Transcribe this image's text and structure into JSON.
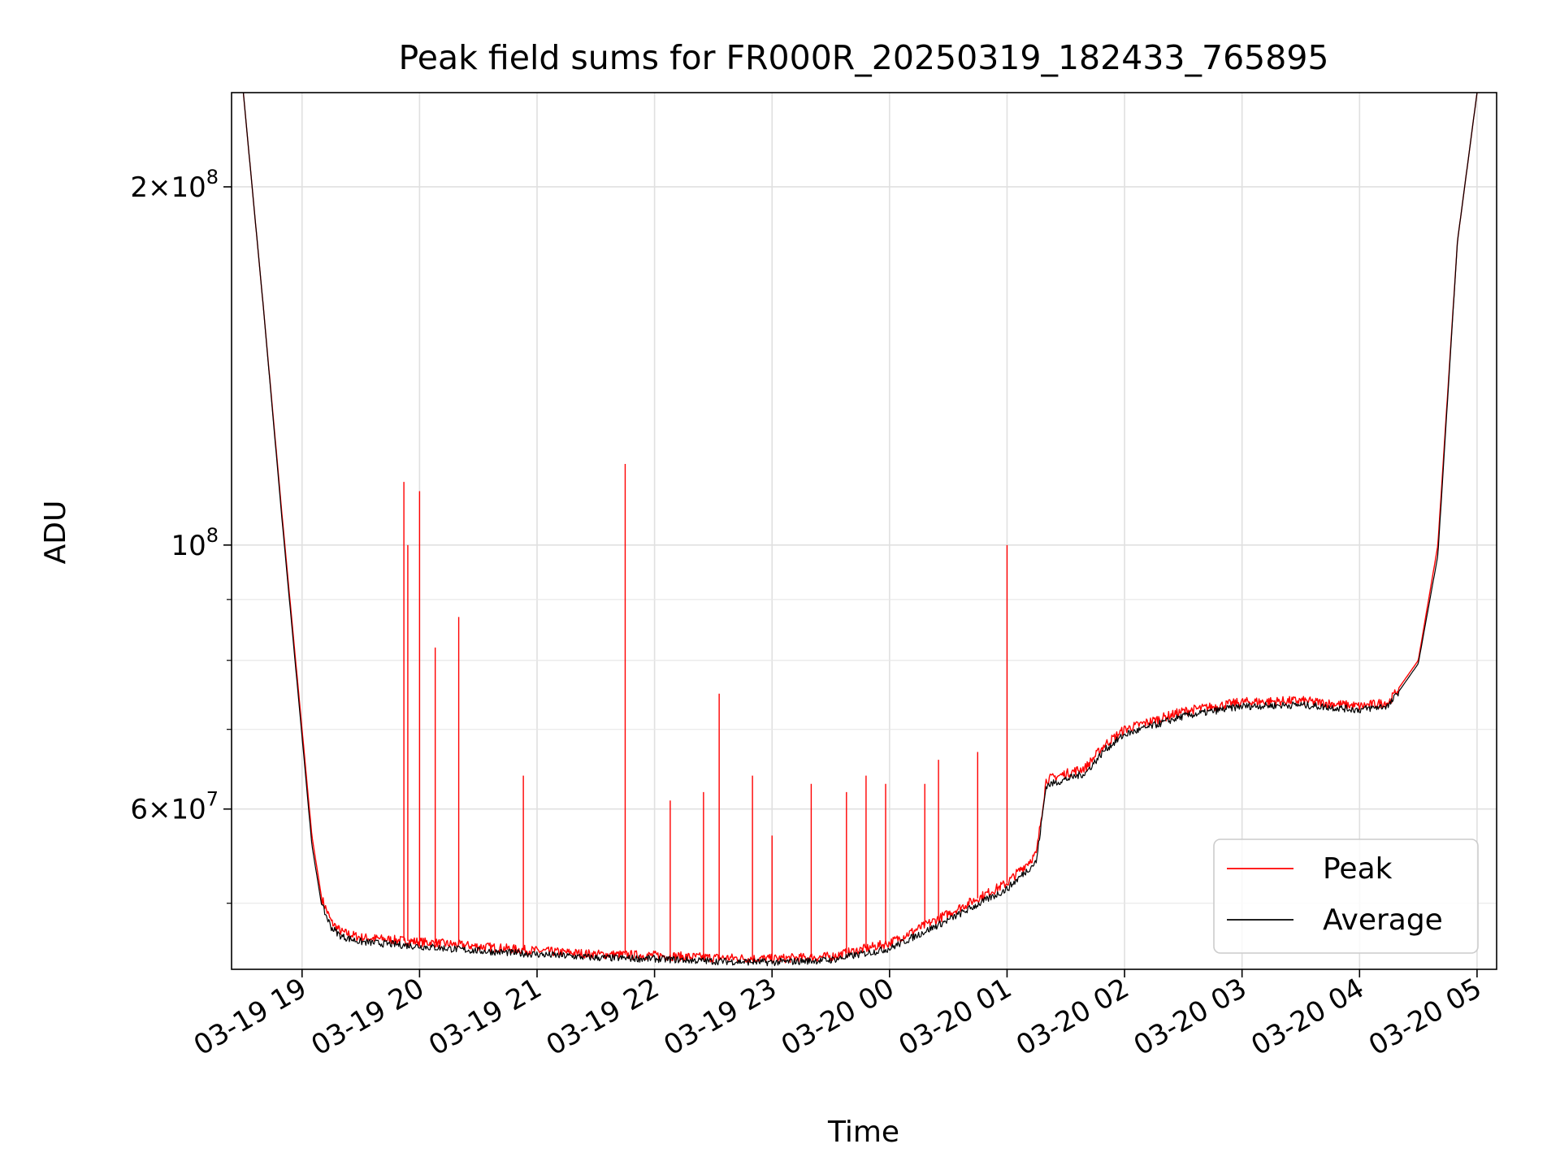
{
  "chart_data": {
    "type": "line",
    "title": "Peak field sums for FR000R_20250319_182433_765895",
    "xlabel": "Time",
    "ylabel": "ADU",
    "yscale": "log",
    "xlim": [
      "2025-03-19 18:24",
      "2025-03-20 05:10"
    ],
    "ylim": [
      44000000,
      240000000
    ],
    "x_ticks": [
      "03-19 19",
      "03-19 20",
      "03-19 21",
      "03-19 22",
      "03-19 23",
      "03-20 00",
      "03-20 01",
      "03-20 02",
      "03-20 03",
      "03-20 04",
      "03-20 05"
    ],
    "y_ticks": [
      {
        "value": 60000000,
        "base": "6",
        "exp": "7"
      },
      {
        "value": 100000000,
        "base": "",
        "exp": "8"
      },
      {
        "value": 200000000,
        "base": "2",
        "exp": "8"
      }
    ],
    "y_minor_ticks": [
      50000000,
      70000000,
      80000000,
      90000000
    ],
    "grid": true,
    "legend_position": "lower-right",
    "colors": {
      "peak": "#ff0000",
      "average": "#000000"
    },
    "series": [
      {
        "name": "Peak",
        "color": "#ff0000",
        "x": [
          "2025-03-19 18:30",
          "2025-03-19 18:40",
          "2025-03-19 18:50",
          "2025-03-19 19:00",
          "2025-03-19 19:05",
          "2025-03-19 19:10",
          "2025-03-19 19:15",
          "2025-03-19 19:20",
          "2025-03-19 19:30",
          "2025-03-19 19:45",
          "2025-03-19 20:00",
          "2025-03-19 20:30",
          "2025-03-19 21:00",
          "2025-03-19 21:30",
          "2025-03-19 22:00",
          "2025-03-19 22:30",
          "2025-03-19 23:00",
          "2025-03-19 23:30",
          "2025-03-20 00:00",
          "2025-03-20 00:30",
          "2025-03-20 01:00",
          "2025-03-20 01:15",
          "2025-03-20 01:20",
          "2025-03-20 01:40",
          "2025-03-20 01:50",
          "2025-03-20 02:00",
          "2025-03-20 02:30",
          "2025-03-20 03:00",
          "2025-03-20 03:30",
          "2025-03-20 04:00",
          "2025-03-20 04:15",
          "2025-03-20 04:30",
          "2025-03-20 04:40",
          "2025-03-20 04:50",
          "2025-03-20 05:00"
        ],
        "values": [
          240000000,
          160000000,
          105000000,
          70000000,
          57000000,
          50500000,
          48200000,
          47300000,
          46800000,
          46600000,
          46400000,
          46000000,
          45600000,
          45300000,
          45200000,
          45000000,
          44900000,
          45100000,
          46300000,
          49000000,
          52000000,
          55000000,
          63500000,
          65000000,
          68000000,
          70000000,
          72500000,
          73800000,
          74000000,
          73200000,
          73800000,
          80000000,
          100000000,
          180000000,
          240000000
        ]
      },
      {
        "name": "Average",
        "color": "#000000",
        "x": [
          "2025-03-19 18:30",
          "2025-03-19 18:40",
          "2025-03-19 18:50",
          "2025-03-19 19:00",
          "2025-03-19 19:05",
          "2025-03-19 19:10",
          "2025-03-19 19:15",
          "2025-03-19 19:20",
          "2025-03-19 19:30",
          "2025-03-19 19:45",
          "2025-03-19 20:00",
          "2025-03-19 20:30",
          "2025-03-19 21:00",
          "2025-03-19 21:30",
          "2025-03-19 22:00",
          "2025-03-19 22:30",
          "2025-03-19 23:00",
          "2025-03-19 23:30",
          "2025-03-20 00:00",
          "2025-03-20 00:30",
          "2025-03-20 01:00",
          "2025-03-20 01:15",
          "2025-03-20 01:20",
          "2025-03-20 01:40",
          "2025-03-20 01:50",
          "2025-03-20 02:00",
          "2025-03-20 02:30",
          "2025-03-20 03:00",
          "2025-03-20 03:30",
          "2025-03-20 04:00",
          "2025-03-20 04:15",
          "2025-03-20 04:30",
          "2025-03-20 04:40",
          "2025-03-20 04:50",
          "2025-03-20 05:00"
        ],
        "values": [
          240000000,
          160000000,
          104000000,
          69000000,
          56000000,
          49800000,
          47700000,
          46900000,
          46400000,
          46200000,
          46000000,
          45600000,
          45300000,
          45000000,
          44900000,
          44700000,
          44600000,
          44800000,
          45800000,
          48400000,
          51400000,
          54200000,
          62800000,
          64300000,
          67300000,
          69300000,
          71800000,
          73200000,
          73400000,
          72700000,
          73300000,
          79500000,
          98000000,
          180000000,
          240000000
        ]
      }
    ],
    "spikes": {
      "x": [
        "2025-03-19 19:52",
        "2025-03-19 19:54",
        "2025-03-19 20:00",
        "2025-03-19 20:08",
        "2025-03-19 20:20",
        "2025-03-19 20:53",
        "2025-03-19 21:45",
        "2025-03-19 22:08",
        "2025-03-19 22:25",
        "2025-03-19 22:33",
        "2025-03-19 22:50",
        "2025-03-19 23:00",
        "2025-03-19 23:20",
        "2025-03-19 23:38",
        "2025-03-19 23:48",
        "2025-03-19 23:58",
        "2025-03-20 00:18",
        "2025-03-20 00:25",
        "2025-03-20 00:45",
        "2025-03-20 01:00"
      ],
      "values": [
        113000000,
        100000000,
        111000000,
        82000000,
        87000000,
        64000000,
        117000000,
        61000000,
        62000000,
        75000000,
        64000000,
        57000000,
        63000000,
        62000000,
        64000000,
        63000000,
        63000000,
        66000000,
        67000000,
        100000000
      ]
    },
    "legend": [
      {
        "label": "Peak",
        "color": "#ff0000"
      },
      {
        "label": "Average",
        "color": "#000000"
      }
    ]
  }
}
